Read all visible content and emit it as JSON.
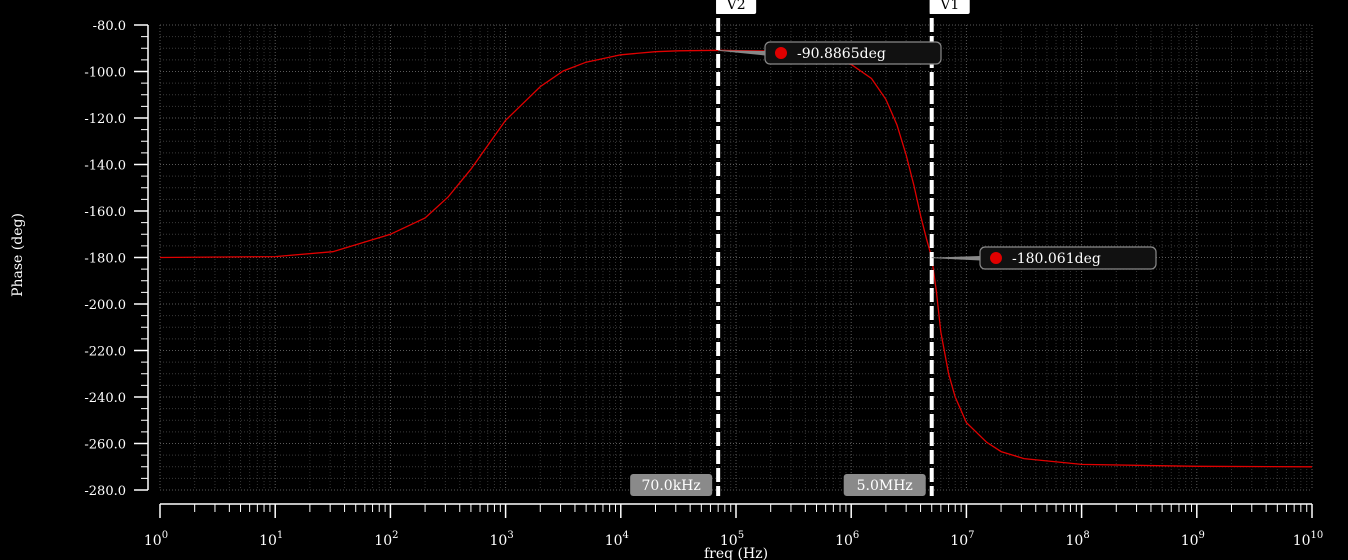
{
  "chart_data": {
    "type": "line",
    "xlabel": "freq (Hz)",
    "ylabel": "Phase (deg)",
    "x_scale": "log",
    "xlim": [
      1,
      10000000000
    ],
    "ylim": [
      -280,
      -80
    ],
    "grid": true,
    "x_tick_exponents": [
      "0",
      "1",
      "2",
      "3",
      "4",
      "5",
      "6",
      "7",
      "8",
      "9",
      "10"
    ],
    "x_tick_base": "10",
    "y_ticks": [
      "-80.0",
      "-100.0",
      "-120.0",
      "-140.0",
      "-160.0",
      "-180.0",
      "-200.0",
      "-220.0",
      "-240.0",
      "-260.0",
      "-280.0"
    ],
    "series": [
      {
        "color": "#e00000",
        "x": [
          1,
          10,
          31.6,
          100,
          200,
          316,
          500,
          1000,
          2000,
          3160,
          5000,
          10000,
          20000,
          31600,
          70000,
          100000,
          200000,
          316000,
          500000,
          1000000,
          1500000,
          2000000,
          2500000,
          3000000,
          3500000,
          4000000,
          4500000,
          5000000,
          5500000,
          6000000,
          7000000,
          8000000,
          10000000,
          15000000,
          20000000,
          31600000,
          100000000,
          1000000000,
          10000000000
        ],
        "y": [
          -180,
          -179.6,
          -177.5,
          -170,
          -163,
          -154,
          -142,
          -121,
          -106.5,
          -99.8,
          -96,
          -92.8,
          -91.5,
          -91.1,
          -90.9,
          -91,
          -91.2,
          -91.8,
          -93,
          -97,
          -103,
          -112,
          -123,
          -136,
          -149,
          -162,
          -172,
          -180,
          -195,
          -212,
          -230,
          -240,
          -251,
          -259.5,
          -263.5,
          -266.5,
          -269,
          -269.8,
          -270
        ]
      }
    ],
    "markers": [
      {
        "label": "-90.8865deg",
        "x": 70000,
        "y": -90.8865,
        "color": "#e00000"
      },
      {
        "label": "-180.061deg",
        "x": 5000000,
        "y": -180.061,
        "color": "#e00000"
      }
    ],
    "cursors": [
      {
        "name": "V2",
        "x": 70000,
        "value_label": "70.0kHz"
      },
      {
        "name": "V1",
        "x": 5000000,
        "value_label": "5.0MHz"
      }
    ]
  }
}
